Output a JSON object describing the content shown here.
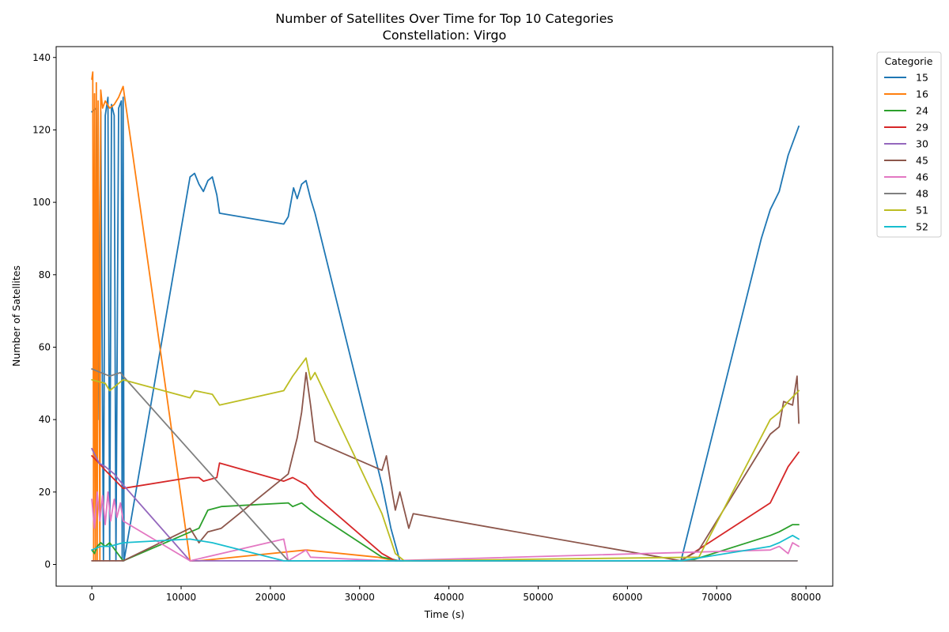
{
  "chart_data": {
    "type": "line",
    "title": "Number of Satellites Over Time for Top 10 Categories",
    "subtitle": "Constellation: Virgo",
    "xlabel": "Time (s)",
    "ylabel": "Number of Satellites",
    "xlim": [
      -4000,
      83000
    ],
    "ylim": [
      -6,
      143
    ],
    "xticks": [
      0,
      10000,
      20000,
      30000,
      40000,
      50000,
      60000,
      70000,
      80000
    ],
    "yticks": [
      0,
      20,
      40,
      60,
      80,
      100,
      120,
      140
    ],
    "grid": false,
    "legend": {
      "title": "Categorie",
      "placement": "outside-top-right"
    },
    "series": [
      {
        "name": "15",
        "color": "#1f77b4",
        "points": [
          [
            0,
            125
          ],
          [
            500,
            126
          ],
          [
            800,
            40
          ],
          [
            1000,
            125
          ],
          [
            1300,
            1
          ],
          [
            1500,
            124
          ],
          [
            1800,
            129
          ],
          [
            2000,
            1
          ],
          [
            2200,
            127
          ],
          [
            2500,
            124
          ],
          [
            2700,
            1
          ],
          [
            3000,
            126
          ],
          [
            3300,
            128
          ],
          [
            3400,
            1
          ],
          [
            3500,
            129
          ],
          [
            3600,
            1
          ],
          [
            11000,
            107
          ],
          [
            11500,
            108
          ],
          [
            12000,
            105
          ],
          [
            12500,
            103
          ],
          [
            13000,
            106
          ],
          [
            13500,
            107
          ],
          [
            14000,
            102
          ],
          [
            14300,
            97
          ],
          [
            21500,
            94
          ],
          [
            22000,
            96
          ],
          [
            22600,
            104
          ],
          [
            23000,
            101
          ],
          [
            23500,
            105
          ],
          [
            24000,
            106
          ],
          [
            24500,
            101
          ],
          [
            25000,
            97
          ],
          [
            32500,
            22
          ],
          [
            33500,
            10
          ],
          [
            34500,
            1
          ],
          [
            66000,
            1
          ],
          [
            75000,
            90
          ],
          [
            76000,
            98
          ],
          [
            77000,
            103
          ],
          [
            78000,
            113
          ],
          [
            79200,
            121
          ]
        ]
      },
      {
        "name": "16",
        "color": "#ff7f0e",
        "points": [
          [
            0,
            134
          ],
          [
            100,
            136
          ],
          [
            200,
            1
          ],
          [
            300,
            130
          ],
          [
            400,
            1
          ],
          [
            500,
            133
          ],
          [
            600,
            1
          ],
          [
            700,
            128
          ],
          [
            900,
            1
          ],
          [
            1000,
            131
          ],
          [
            1200,
            126
          ],
          [
            1500,
            128
          ],
          [
            2000,
            126
          ],
          [
            2500,
            127
          ],
          [
            3000,
            129
          ],
          [
            3500,
            132
          ],
          [
            11000,
            1
          ],
          [
            12000,
            1
          ],
          [
            24000,
            4
          ],
          [
            32000,
            2
          ],
          [
            34000,
            1
          ],
          [
            79000,
            1
          ]
        ]
      },
      {
        "name": "24",
        "color": "#2ca02c",
        "points": [
          [
            0,
            4
          ],
          [
            300,
            3
          ],
          [
            600,
            5
          ],
          [
            1000,
            6
          ],
          [
            1500,
            5
          ],
          [
            2000,
            6
          ],
          [
            3500,
            1
          ],
          [
            12000,
            10
          ],
          [
            13000,
            15
          ],
          [
            14500,
            16
          ],
          [
            22000,
            17
          ],
          [
            22500,
            16
          ],
          [
            23500,
            17
          ],
          [
            24500,
            15
          ],
          [
            32500,
            2
          ],
          [
            34500,
            1
          ],
          [
            67000,
            1
          ],
          [
            76000,
            8
          ],
          [
            77000,
            9
          ],
          [
            78500,
            11
          ],
          [
            79200,
            11
          ]
        ]
      },
      {
        "name": "29",
        "color": "#d62728",
        "points": [
          [
            0,
            30
          ],
          [
            800,
            28
          ],
          [
            1500,
            26
          ],
          [
            3500,
            21
          ],
          [
            11000,
            24
          ],
          [
            12000,
            24
          ],
          [
            12500,
            23
          ],
          [
            14000,
            24
          ],
          [
            14300,
            28
          ],
          [
            21500,
            23
          ],
          [
            22500,
            24
          ],
          [
            24000,
            22
          ],
          [
            25000,
            19
          ],
          [
            32500,
            3
          ],
          [
            34000,
            1
          ],
          [
            66000,
            1
          ],
          [
            76000,
            17
          ],
          [
            77000,
            22
          ],
          [
            78000,
            27
          ],
          [
            79200,
            31
          ]
        ]
      },
      {
        "name": "30",
        "color": "#9467bd",
        "points": [
          [
            0,
            32
          ],
          [
            800,
            28
          ],
          [
            1500,
            27
          ],
          [
            2500,
            25
          ],
          [
            3500,
            22
          ],
          [
            11000,
            1
          ],
          [
            79000,
            1
          ]
        ]
      },
      {
        "name": "45",
        "color": "#8c564b",
        "points": [
          [
            0,
            1
          ],
          [
            3500,
            1
          ],
          [
            11000,
            10
          ],
          [
            12000,
            6
          ],
          [
            13000,
            9
          ],
          [
            14500,
            10
          ],
          [
            22000,
            25
          ],
          [
            22500,
            30
          ],
          [
            23000,
            35
          ],
          [
            23500,
            42
          ],
          [
            24000,
            53
          ],
          [
            24500,
            44
          ],
          [
            25000,
            34
          ],
          [
            32500,
            26
          ],
          [
            33000,
            30
          ],
          [
            33500,
            22
          ],
          [
            34000,
            15
          ],
          [
            34500,
            20
          ],
          [
            35500,
            10
          ],
          [
            36000,
            14
          ],
          [
            66000,
            1
          ],
          [
            68000,
            4
          ],
          [
            76000,
            36
          ],
          [
            77000,
            38
          ],
          [
            77500,
            45
          ],
          [
            78500,
            44
          ],
          [
            79000,
            52
          ],
          [
            79200,
            39
          ]
        ]
      },
      {
        "name": "46",
        "color": "#e377c2",
        "points": [
          [
            0,
            18
          ],
          [
            300,
            10
          ],
          [
            600,
            20
          ],
          [
            900,
            12
          ],
          [
            1200,
            19
          ],
          [
            1500,
            11
          ],
          [
            1800,
            20
          ],
          [
            2100,
            12
          ],
          [
            2500,
            18
          ],
          [
            2800,
            13
          ],
          [
            3200,
            17
          ],
          [
            3500,
            12
          ],
          [
            11000,
            1
          ],
          [
            21500,
            7
          ],
          [
            22000,
            1
          ],
          [
            24000,
            4
          ],
          [
            24500,
            2
          ],
          [
            33000,
            1
          ],
          [
            76000,
            4
          ],
          [
            77000,
            5
          ],
          [
            78000,
            3
          ],
          [
            78500,
            6
          ],
          [
            79200,
            5
          ]
        ]
      },
      {
        "name": "48",
        "color": "#7f7f7f",
        "points": [
          [
            0,
            54
          ],
          [
            1000,
            53
          ],
          [
            2000,
            52
          ],
          [
            3200,
            53
          ],
          [
            3500,
            52
          ],
          [
            22000,
            1
          ],
          [
            79000,
            1
          ]
        ]
      },
      {
        "name": "51",
        "color": "#bcbd22",
        "points": [
          [
            0,
            51
          ],
          [
            1500,
            50
          ],
          [
            2000,
            48
          ],
          [
            3000,
            50
          ],
          [
            3500,
            51
          ],
          [
            11000,
            46
          ],
          [
            11500,
            48
          ],
          [
            13500,
            47
          ],
          [
            14300,
            44
          ],
          [
            21500,
            48
          ],
          [
            22500,
            52
          ],
          [
            24000,
            57
          ],
          [
            24500,
            51
          ],
          [
            25000,
            53
          ],
          [
            32500,
            14
          ],
          [
            34000,
            3
          ],
          [
            35000,
            1
          ],
          [
            68000,
            2
          ],
          [
            76000,
            40
          ],
          [
            77000,
            42
          ],
          [
            78000,
            45
          ],
          [
            79200,
            48
          ]
        ]
      },
      {
        "name": "52",
        "color": "#17becf",
        "points": [
          [
            0,
            4
          ],
          [
            1000,
            5
          ],
          [
            2000,
            5
          ],
          [
            3500,
            6
          ],
          [
            11000,
            7
          ],
          [
            13500,
            6
          ],
          [
            21500,
            1
          ],
          [
            33000,
            1
          ],
          [
            66000,
            1
          ],
          [
            76000,
            5
          ],
          [
            77000,
            6
          ],
          [
            78500,
            8
          ],
          [
            79200,
            7
          ]
        ]
      }
    ]
  }
}
